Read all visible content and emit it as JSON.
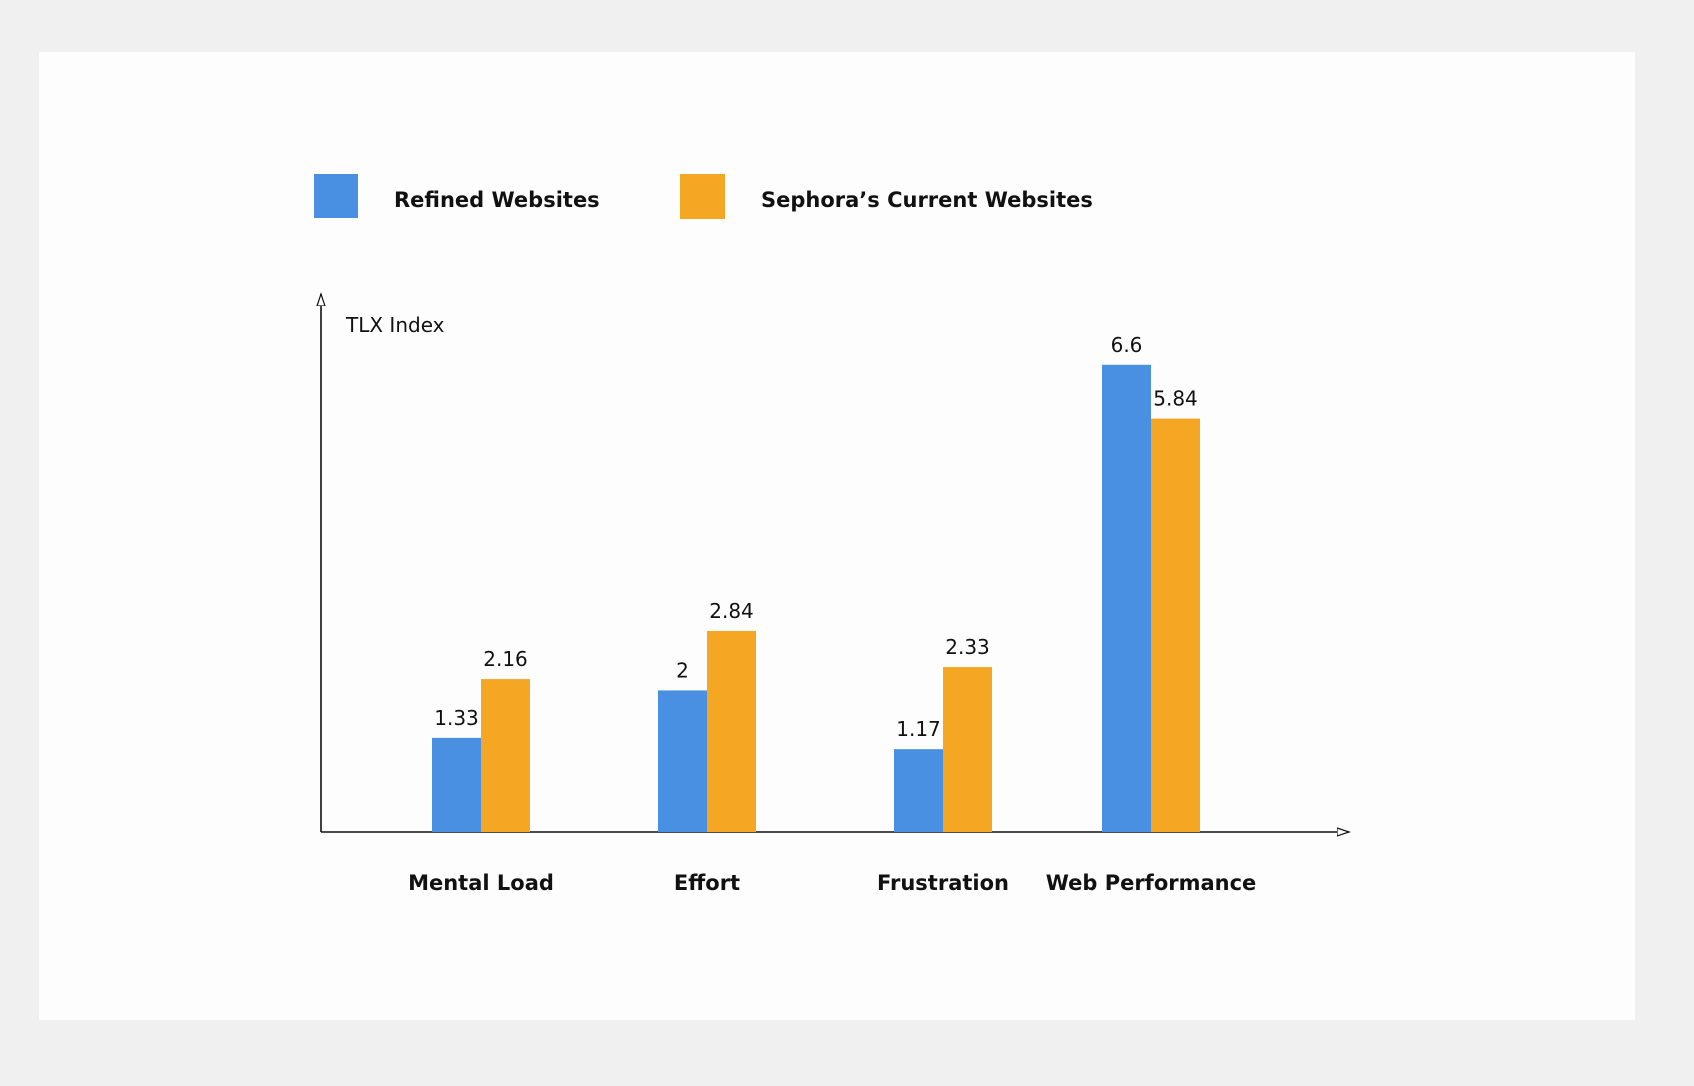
{
  "chart_data": {
    "type": "bar",
    "ylabel": "TLX Index",
    "xlabel": "",
    "categories": [
      "Mental Load",
      "Effort",
      "Frustration",
      "Web Performance"
    ],
    "series": [
      {
        "name": "Refined Websites",
        "color": "#4a90e2",
        "values": [
          1.33,
          2,
          1.17,
          6.6
        ]
      },
      {
        "name": "Sephora’s Current Websites",
        "color": "#f5a623",
        "values": [
          2.16,
          2.84,
          2.33,
          5.84
        ]
      }
    ],
    "value_labels": [
      [
        "1.33",
        "2",
        "1.17",
        "6.6"
      ],
      [
        "2.16",
        "2.84",
        "2.33",
        "5.84"
      ]
    ],
    "ylim": [
      0,
      7.6
    ],
    "grid": false,
    "legend_position": "top-left"
  }
}
